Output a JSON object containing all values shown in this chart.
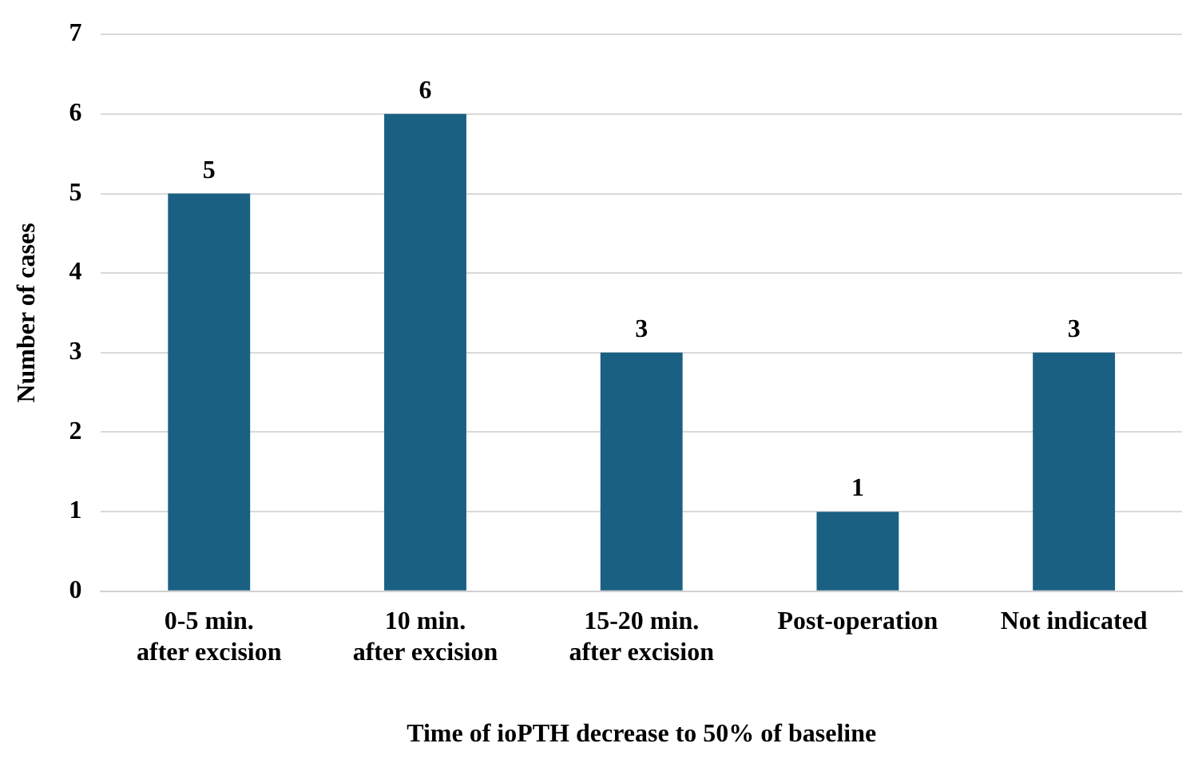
{
  "chart_data": {
    "type": "bar",
    "xlabel": "Time of ioPTH decrease to 50% of baseline",
    "ylabel": "Number of cases",
    "categories": [
      "0-5 min.\nafter excision",
      "10 min.\nafter excision",
      "15-20 min.\nafter excision",
      "Post-operation",
      "Not indicated"
    ],
    "values": [
      5,
      6,
      3,
      1,
      3
    ],
    "color": "#1a6082",
    "ylim": [
      0,
      7
    ],
    "yticks": [
      0,
      1,
      2,
      3,
      4,
      5,
      6,
      7
    ],
    "grid": "y",
    "data_labels": true
  }
}
